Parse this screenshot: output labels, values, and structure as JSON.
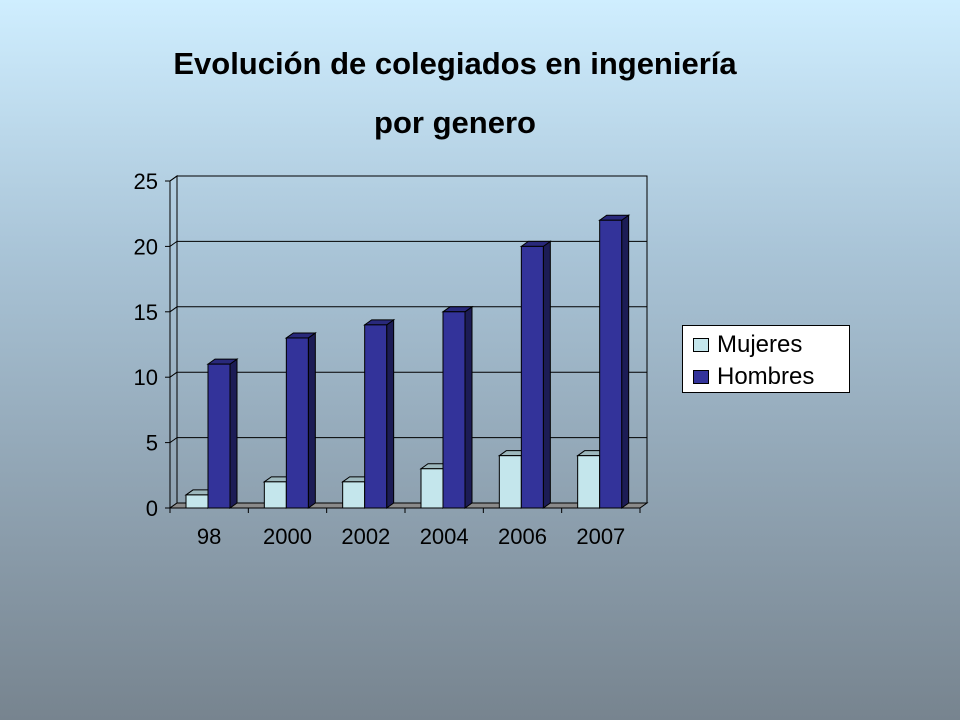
{
  "chart_data": {
    "type": "bar",
    "title_line1": "Evolución de colegiados en ingeniería",
    "title_line2": "por genero",
    "categories": [
      "98",
      "2000",
      "2002",
      "2004",
      "2006",
      "2007"
    ],
    "series": [
      {
        "name": "Mujeres",
        "values": [
          1,
          2,
          2,
          3,
          4,
          4
        ],
        "color": "#c4e6ec"
      },
      {
        "name": "Hombres",
        "values": [
          11,
          13,
          14,
          15,
          20,
          22
        ],
        "color": "#33339a"
      }
    ],
    "ylim": [
      0,
      25
    ],
    "yticks": [
      0,
      5,
      10,
      15,
      20,
      25
    ],
    "grid": true,
    "legend_position": "right"
  }
}
